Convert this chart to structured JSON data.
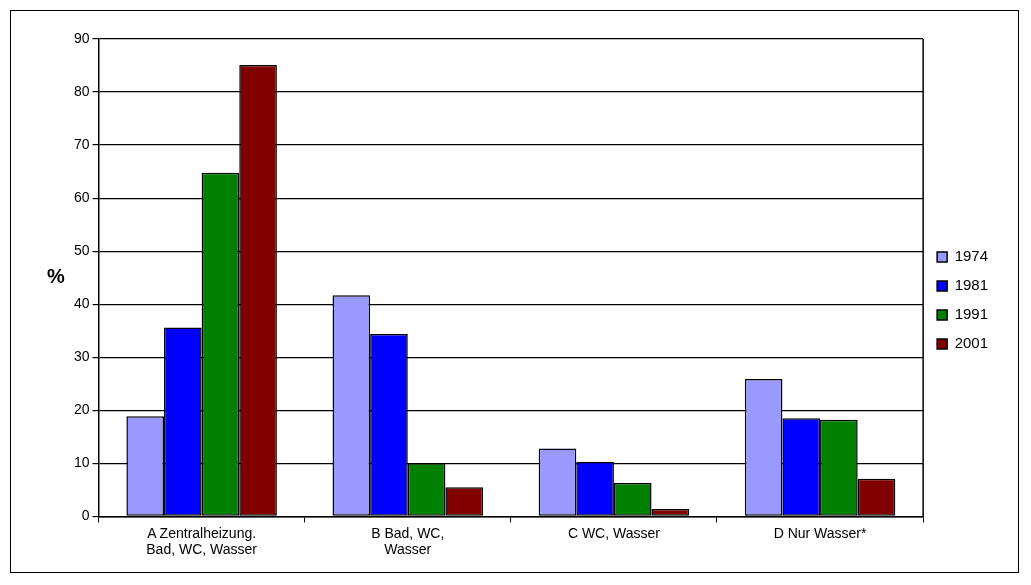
{
  "chart_data": {
    "type": "bar",
    "ylabel": "%",
    "categories": [
      "A Zentralheizung.\nBad, WC, Wasser",
      "B Bad, WC,\nWasser",
      "C WC, Wasser",
      "D Nur Wasser*"
    ],
    "series": [
      {
        "name": "1974",
        "color": "#9999ff",
        "values": [
          18.9,
          41.7,
          12.8,
          25.9
        ]
      },
      {
        "name": "1981",
        "color": "#0000ff",
        "values": [
          35.6,
          34.4,
          10.3,
          18.5
        ]
      },
      {
        "name": "1991",
        "color": "#008000",
        "values": [
          64.8,
          10.0,
          6.3,
          18.2
        ]
      },
      {
        "name": "2001",
        "color": "#800000",
        "values": [
          85.1,
          5.5,
          1.4,
          7.1
        ]
      }
    ],
    "ylim": [
      0,
      90
    ],
    "yticks": [
      0,
      10,
      20,
      30,
      40,
      50,
      60,
      70,
      80,
      90
    ],
    "grid": "y",
    "legend": "right"
  }
}
